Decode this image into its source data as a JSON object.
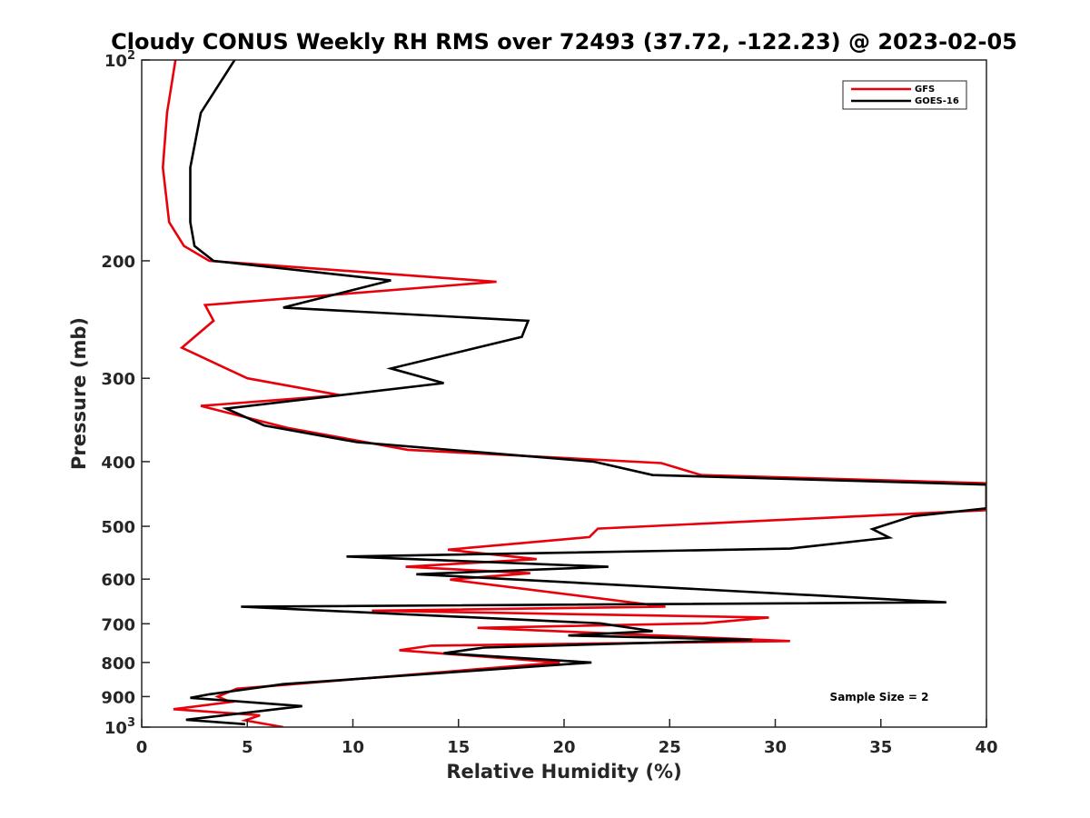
{
  "chart_data": {
    "type": "line",
    "title": "Cloudy CONUS Weekly RH RMS over 72493 (37.72, -122.23) @ 2023-02-05",
    "xlabel": "Relative Humidity (%)",
    "ylabel": "Pressure (mb)",
    "xlim": [
      0,
      40
    ],
    "ylim": [
      100,
      1000
    ],
    "y_scale": "log",
    "y_reversed": true,
    "x_ticks": [
      "0",
      "5",
      "10",
      "15",
      "20",
      "25",
      "30",
      "35",
      "40"
    ],
    "y_ticks": [
      {
        "value": 100,
        "label": "10",
        "sup": "2"
      },
      {
        "value": 200,
        "label": "200",
        "sup": ""
      },
      {
        "value": 300,
        "label": "300",
        "sup": ""
      },
      {
        "value": 400,
        "label": "400",
        "sup": ""
      },
      {
        "value": 500,
        "label": "500",
        "sup": ""
      },
      {
        "value": 600,
        "label": "600",
        "sup": ""
      },
      {
        "value": 700,
        "label": "700",
        "sup": ""
      },
      {
        "value": 800,
        "label": "800",
        "sup": ""
      },
      {
        "value": 900,
        "label": "900",
        "sup": ""
      },
      {
        "value": 1000,
        "label": "10",
        "sup": "3"
      }
    ],
    "grid": false,
    "legend_position": "top-right",
    "annotation": "Sample Size = 2",
    "series": [
      {
        "name": "GFS",
        "color": "#e8000b",
        "points": [
          [
            1.6,
            100
          ],
          [
            1.2,
            120
          ],
          [
            1.0,
            145
          ],
          [
            1.3,
            175
          ],
          [
            2.0,
            190
          ],
          [
            3.2,
            200
          ],
          [
            16.8,
            215
          ],
          [
            3.0,
            233
          ],
          [
            3.4,
            246
          ],
          [
            1.9,
            270
          ],
          [
            5.0,
            300
          ],
          [
            9.4,
            318
          ],
          [
            2.8,
            330
          ],
          [
            6.9,
            356
          ],
          [
            12.6,
            384
          ],
          [
            24.6,
            402
          ],
          [
            26.5,
            419
          ],
          [
            40.0,
            431
          ],
          [
            40.0,
            473
          ],
          [
            21.6,
            504
          ],
          [
            21.2,
            519
          ],
          [
            14.5,
            542
          ],
          [
            18.7,
            560
          ],
          [
            12.5,
            575
          ],
          [
            18.4,
            588
          ],
          [
            14.6,
            601
          ],
          [
            24.8,
            660
          ],
          [
            10.9,
            669
          ],
          [
            29.7,
            685
          ],
          [
            26.6,
            699
          ],
          [
            15.9,
            710
          ],
          [
            30.7,
            743
          ],
          [
            13.7,
            755
          ],
          [
            12.2,
            767
          ],
          [
            19.8,
            800
          ],
          [
            4.5,
            876
          ],
          [
            3.6,
            900
          ],
          [
            4.2,
            917
          ],
          [
            1.5,
            940
          ],
          [
            5.6,
            960
          ],
          [
            4.9,
            977
          ],
          [
            6.7,
            1000
          ]
        ]
      },
      {
        "name": "GOES-16",
        "color": "#000000",
        "points": [
          [
            4.4,
            100
          ],
          [
            2.8,
            120
          ],
          [
            2.3,
            145
          ],
          [
            2.3,
            175
          ],
          [
            2.5,
            190
          ],
          [
            3.4,
            200
          ],
          [
            11.8,
            214
          ],
          [
            6.7,
            235
          ],
          [
            18.3,
            246
          ],
          [
            18.0,
            260
          ],
          [
            11.8,
            290
          ],
          [
            14.3,
            305
          ],
          [
            4.0,
            333
          ],
          [
            5.8,
            353
          ],
          [
            10.2,
            374
          ],
          [
            21.4,
            400
          ],
          [
            24.2,
            419
          ],
          [
            40.0,
            433
          ],
          [
            40.0,
            470
          ],
          [
            36.5,
            483
          ],
          [
            34.6,
            505
          ],
          [
            35.4,
            520
          ],
          [
            30.7,
            540
          ],
          [
            9.7,
            555
          ],
          [
            22.1,
            575
          ],
          [
            13.0,
            590
          ],
          [
            38.1,
            650
          ],
          [
            4.7,
            660
          ],
          [
            21.7,
            699
          ],
          [
            24.2,
            718
          ],
          [
            20.2,
            729
          ],
          [
            28.9,
            740
          ],
          [
            16.2,
            760
          ],
          [
            14.3,
            775
          ],
          [
            21.3,
            800
          ],
          [
            6.7,
            862
          ],
          [
            3.2,
            893
          ],
          [
            2.3,
            904
          ],
          [
            7.6,
            930
          ],
          [
            2.1,
            975
          ],
          [
            4.9,
            990
          ]
        ]
      }
    ]
  }
}
